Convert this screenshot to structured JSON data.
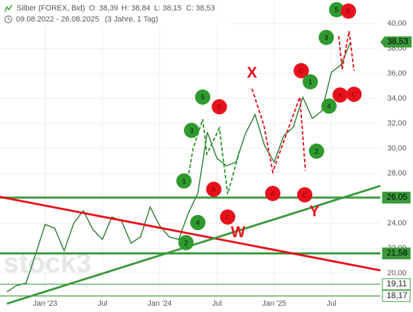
{
  "chart_data": {
    "type": "line",
    "title": "Silber (FOREX, Bid)",
    "ohlc": [
      "O: 38,39",
      "H: 38,84",
      "L: 38,15",
      "C: 38,53"
    ],
    "date_range": "09.08.2022 - 26.08.2025",
    "period": "(3 Jahre, 1 Tag)",
    "watermark": "stock3",
    "categories": [
      null,
      null,
      null,
      null,
      null,
      "Jan '23",
      null,
      null,
      null,
      null,
      null,
      "Jul",
      null,
      null,
      null,
      null,
      null,
      "Jan '24",
      null,
      null,
      null,
      null,
      null,
      "Jul",
      null,
      null,
      null,
      null,
      null,
      "Jan '25",
      null,
      null,
      null,
      null,
      null,
      "Jul",
      null
    ],
    "series": [
      {
        "color": "#2e7d32",
        "values": [
          18.5,
          19.0,
          19.2,
          21.5,
          23.9,
          23.6,
          21.8,
          24.0,
          25.0,
          23.5,
          22.7,
          24.5,
          24.2,
          22.4,
          22.9,
          25.3,
          23.8,
          22.9,
          22.7,
          24.8,
          26.4,
          31.3,
          29.2,
          28.6,
          28.9,
          31.2,
          32.7,
          30.2,
          28.9,
          31.0,
          31.7,
          34.1,
          32.4,
          33.0,
          36.1,
          36.7,
          38.53
        ]
      }
    ],
    "ylim": [
      17.44,
      41.89
    ],
    "yticks": [
      {
        "value": 20,
        "label": "20,00"
      },
      {
        "value": 22,
        "label": "22,00"
      },
      {
        "value": 24,
        "label": "24,00"
      },
      {
        "value": 26,
        "label": "26,00"
      },
      {
        "value": 28,
        "label": "28,00"
      },
      {
        "value": 30,
        "label": "30,00"
      },
      {
        "value": 32,
        "label": "32,00"
      },
      {
        "value": 34,
        "label": "34,00"
      },
      {
        "value": 36,
        "label": "36,00"
      },
      {
        "value": 38,
        "label": "38,00"
      },
      {
        "value": 40,
        "label": "40,00"
      }
    ],
    "grid": true,
    "last_price": {
      "value": 38.53,
      "label": "38,53",
      "color": "#3a9a3a"
    },
    "levels": [
      {
        "value": 26.05,
        "label": "26,05",
        "color": "#3a9a3a",
        "bold": true
      },
      {
        "value": 21.58,
        "label": "21,58",
        "color": "#3a9a3a",
        "bold": true
      },
      {
        "value": 19.11,
        "label": "19,11",
        "color": "#3a9a3a",
        "bold": false
      },
      {
        "value": 18.17,
        "label": "18,17",
        "color": "#3a9a3a",
        "bold": false
      }
    ],
    "wave_labels": [
      {
        "text": "5",
        "color": "#2e9a2e"
      },
      {
        "text": "B",
        "color": "#e8121d"
      },
      {
        "text": "3",
        "color": "#2e9a2e"
      },
      {
        "text": "B",
        "color": "#e8121d"
      },
      {
        "text": "1",
        "color": "#2e9a2e"
      },
      {
        "text": "A",
        "color": "#e8121d"
      },
      {
        "text": "C",
        "color": "#e8121d"
      },
      {
        "text": "4",
        "color": "#2e9a2e"
      },
      {
        "text": "2",
        "color": "#2e9a2e"
      },
      {
        "text": "5",
        "color": "#2e9a2e"
      },
      {
        "text": "B",
        "color": "#e8121d"
      },
      {
        "text": "3",
        "color": "#2e9a2e"
      },
      {
        "text": "1",
        "color": "#2e9a2e"
      },
      {
        "text": "A",
        "color": "#e8121d"
      },
      {
        "text": "A",
        "color": "#e8121d"
      },
      {
        "text": "C",
        "color": "#e8121d"
      },
      {
        "text": "4",
        "color": "#2e9a2e"
      },
      {
        "text": "C",
        "color": "#e8121d"
      },
      {
        "text": "2",
        "color": "#2e9a2e"
      }
    ],
    "pattern_labels": [
      {
        "text": "X",
        "color": "#e8121d"
      },
      {
        "text": "Y",
        "color": "#e8121d"
      },
      {
        "text": "W",
        "color": "#e8121d"
      }
    ]
  }
}
